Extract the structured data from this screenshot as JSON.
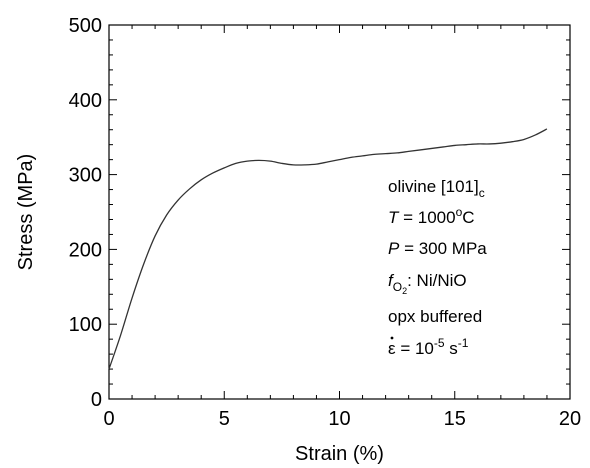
{
  "chart_data": {
    "type": "line",
    "title": "",
    "xlabel": "Strain (%)",
    "ylabel": "Stress (MPa)",
    "xlim": [
      0,
      20
    ],
    "ylim": [
      0,
      500
    ],
    "xticks": [
      0,
      5,
      10,
      15,
      20
    ],
    "yticks": [
      0,
      100,
      200,
      300,
      400,
      500
    ],
    "grid": false,
    "legend": "none",
    "series": [
      {
        "x": [
          0,
          0.5,
          1,
          1.5,
          2,
          2.5,
          3,
          3.5,
          4,
          4.5,
          5,
          5.5,
          6,
          6.5,
          7,
          7.5,
          8,
          8.5,
          9,
          9.5,
          10,
          10.5,
          11,
          11.5,
          12,
          12.5,
          13,
          13.5,
          14,
          14.5,
          15,
          15.5,
          16,
          16.5,
          17,
          17.5,
          18,
          18.5,
          19
        ],
        "y": [
          40,
          85,
          135,
          180,
          218,
          246,
          266,
          281,
          293,
          302,
          309,
          315,
          318,
          319,
          318,
          315,
          313,
          313,
          314,
          317,
          320,
          323,
          325,
          327,
          328,
          329,
          331,
          333,
          335,
          337,
          339,
          340,
          341,
          341,
          342,
          344,
          347,
          353,
          361
        ]
      }
    ],
    "annotations": {
      "line1_main": "olivine [101]",
      "line1_sub": "c",
      "line2_var": "T",
      "line2_rest": " = 1000",
      "line2_sup": "o",
      "line2_unit": "C",
      "line3_var": "P",
      "line3_rest": " = 300 MPa",
      "line4_var": "f",
      "line4_sub": "O",
      "line4_subsub": "2",
      "line4_rest": ": Ni/NiO",
      "line5": "opx buffered",
      "line6_sym": "ε",
      "line6_eq": " = 10",
      "line6_sup": "-5",
      "line6_unit": " s",
      "line6_unit_sup": "-1"
    }
  }
}
